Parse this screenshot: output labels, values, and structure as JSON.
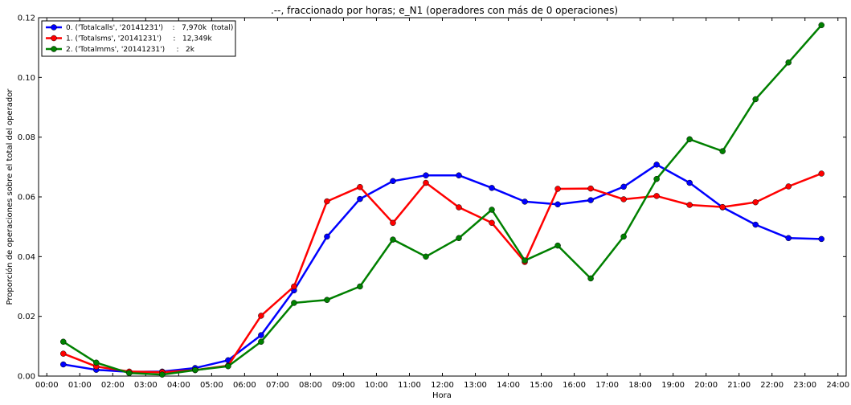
{
  "chart_data": {
    "type": "line",
    "title": ".--, fraccionado por horas; e_N1 (operadores con más de 0 operaciones)",
    "xlabel": "Hora",
    "ylabel": "Proporción de operaciones sobre el total del operador",
    "ylim": [
      0,
      0.12
    ],
    "xlim": [
      -0.25,
      24.25
    ],
    "grid": false,
    "legend_position": "top-left",
    "x_tick_labels": [
      "00:00",
      "01:00",
      "02:00",
      "03:00",
      "04:00",
      "05:00",
      "06:00",
      "07:00",
      "08:00",
      "09:00",
      "10:00",
      "11:00",
      "12:00",
      "13:00",
      "14:00",
      "15:00",
      "16:00",
      "17:00",
      "18:00",
      "19:00",
      "20:00",
      "21:00",
      "22:00",
      "23:00",
      "24:00"
    ],
    "y_tick_labels": [
      "0.00",
      "0.02",
      "0.04",
      "0.06",
      "0.08",
      "0.10",
      "0.12"
    ],
    "x": [
      0.5,
      1.5,
      2.5,
      3.5,
      4.5,
      5.5,
      6.5,
      7.5,
      8.5,
      9.5,
      10.5,
      11.5,
      12.5,
      13.5,
      14.5,
      15.5,
      16.5,
      17.5,
      18.5,
      19.5,
      20.5,
      21.5,
      22.5,
      23.5
    ],
    "series": [
      {
        "name": "0. ('Totalcalls', '20141231')    :   7,970k  (total)",
        "color": "#0000ff",
        "values": [
          0.0039,
          0.0021,
          0.0014,
          0.0015,
          0.0027,
          0.0053,
          0.0137,
          0.0287,
          0.0467,
          0.0593,
          0.0653,
          0.0672,
          0.0672,
          0.063,
          0.0584,
          0.0575,
          0.0589,
          0.0634,
          0.0708,
          0.0647,
          0.0565,
          0.0507,
          0.0462,
          0.0459
        ]
      },
      {
        "name": "1. ('Totalsms', '20141231')     :   12,349k",
        "color": "#ff0000",
        "values": [
          0.0075,
          0.0032,
          0.0015,
          0.0013,
          0.002,
          0.0035,
          0.0202,
          0.03,
          0.0585,
          0.0633,
          0.0513,
          0.0647,
          0.0565,
          0.0513,
          0.0382,
          0.0627,
          0.0628,
          0.0592,
          0.0603,
          0.0573,
          0.0566,
          0.0582,
          0.0635,
          0.0678
        ]
      },
      {
        "name": "2. ('Totalmms', '20141231')     :   2k",
        "color": "#008000",
        "values": [
          0.0115,
          0.0045,
          0.001,
          0.0005,
          0.002,
          0.0033,
          0.0115,
          0.0245,
          0.0255,
          0.03,
          0.0457,
          0.04,
          0.0462,
          0.0557,
          0.0387,
          0.0437,
          0.0327,
          0.0467,
          0.066,
          0.0793,
          0.0753,
          0.0927,
          0.105,
          0.1175
        ]
      }
    ]
  }
}
